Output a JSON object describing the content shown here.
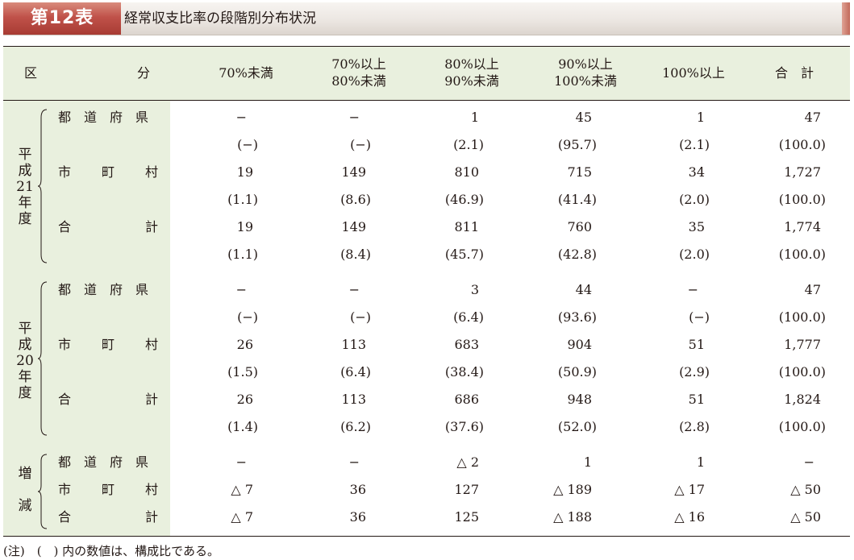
{
  "header": {
    "badge": "第12表",
    "title": "経常収支比率の段階別分布状況"
  },
  "table": {
    "columns": {
      "division_left": "区",
      "division_right": "分",
      "c1": "70%未満",
      "c2_l1": "70%以上",
      "c2_l2": "80%未満",
      "c3_l1": "80%以上",
      "c3_l2": "90%未満",
      "c4_l1": "90%以上",
      "c4_l2": "100%未満",
      "c5": "100%以上",
      "c6": "合　計"
    },
    "groups": [
      {
        "label": "平\n成\n21\n年\n度",
        "rows": [
          {
            "label_a": "都　道　府　県",
            "label_b": "",
            "v": [
              "−",
              "−",
              "1",
              "45",
              "1",
              "47"
            ],
            "p": [
              "(−)",
              "(−)",
              "(2.1)",
              "(95.7)",
              "(2.1)",
              "(100.0)"
            ]
          },
          {
            "label_a": "市",
            "label_m": "町",
            "label_b": "村",
            "v": [
              "19",
              "149",
              "810",
              "715",
              "34",
              "1,727"
            ],
            "p": [
              "(1.1)",
              "(8.6)",
              "(46.9)",
              "(41.4)",
              "(2.0)",
              "(100.0)"
            ]
          },
          {
            "label_a": "合",
            "label_b": "計",
            "v": [
              "19",
              "149",
              "811",
              "760",
              "35",
              "1,774"
            ],
            "p": [
              "(1.1)",
              "(8.4)",
              "(45.7)",
              "(42.8)",
              "(2.0)",
              "(100.0)"
            ]
          }
        ]
      },
      {
        "label": "平\n成\n20\n年\n度",
        "rows": [
          {
            "label_a": "都　道　府　県",
            "label_b": "",
            "v": [
              "−",
              "−",
              "3",
              "44",
              "−",
              "47"
            ],
            "p": [
              "(−)",
              "(−)",
              "(6.4)",
              "(93.6)",
              "(−)",
              "(100.0)"
            ]
          },
          {
            "label_a": "市",
            "label_m": "町",
            "label_b": "村",
            "v": [
              "26",
              "113",
              "683",
              "904",
              "51",
              "1,777"
            ],
            "p": [
              "(1.5)",
              "(6.4)",
              "(38.4)",
              "(50.9)",
              "(2.9)",
              "(100.0)"
            ]
          },
          {
            "label_a": "合",
            "label_b": "計",
            "v": [
              "26",
              "113",
              "686",
              "948",
              "51",
              "1,824"
            ],
            "p": [
              "(1.4)",
              "(6.2)",
              "(37.6)",
              "(52.0)",
              "(2.8)",
              "(100.0)"
            ]
          }
        ]
      },
      {
        "label": "増\n\n減",
        "rows": [
          {
            "label_a": "都　道　府　県",
            "label_b": "",
            "v": [
              "−",
              "−",
              "△ 2",
              "1",
              "1",
              "−"
            ]
          },
          {
            "label_a": "市",
            "label_m": "町",
            "label_b": "村",
            "v": [
              "△ 7",
              "36",
              "127",
              "△ 189",
              "△ 17",
              "△ 50"
            ]
          },
          {
            "label_a": "合",
            "label_b": "計",
            "v": [
              "△ 7",
              "36",
              "125",
              "△ 188",
              "△ 16",
              "△ 50"
            ]
          }
        ]
      }
    ]
  },
  "note": "(注)　(　) 内の数値は、構成比である。"
}
